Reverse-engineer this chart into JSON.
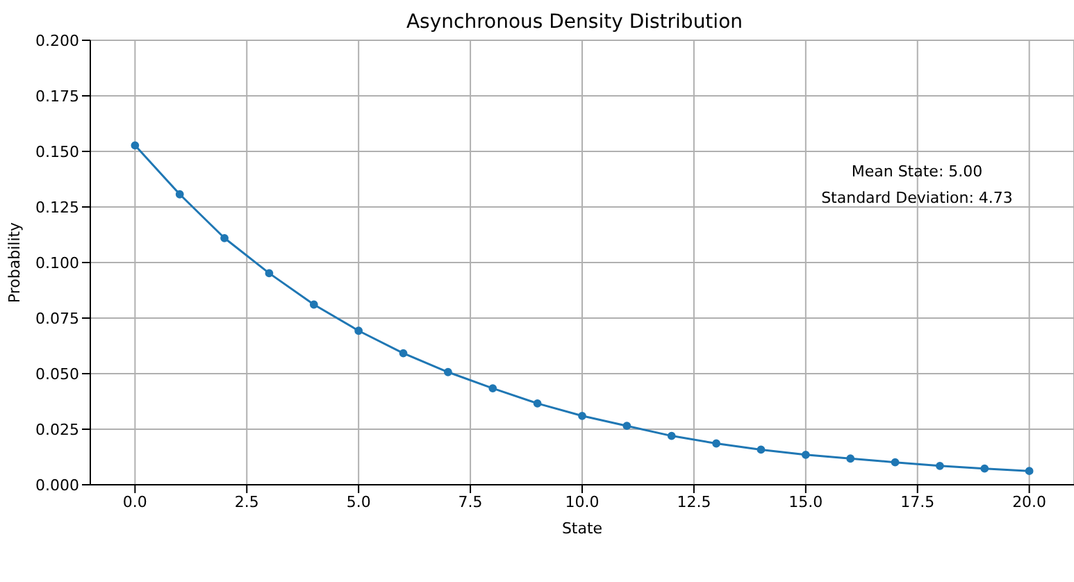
{
  "chart_data": {
    "type": "line",
    "title": "Asynchronous Density Distribution",
    "xlabel": "State",
    "ylabel": "Probability",
    "x": [
      0,
      1,
      2,
      3,
      4,
      5,
      6,
      7,
      8,
      9,
      10,
      11,
      12,
      13,
      14,
      15,
      16,
      17,
      18,
      19,
      20
    ],
    "series": [
      {
        "color": "#1f77b4",
        "values": [
          0.1527,
          0.1307,
          0.111,
          0.0952,
          0.0811,
          0.0693,
          0.0592,
          0.0507,
          0.0434,
          0.0366,
          0.031,
          0.0265,
          0.022,
          0.0186,
          0.0158,
          0.0135,
          0.0118,
          0.0101,
          0.0085,
          0.0073,
          0.0062
        ]
      }
    ],
    "xlim": [
      -1,
      21
    ],
    "xticks": [
      {
        "value": 0,
        "label": "0.0"
      },
      {
        "value": 2.5,
        "label": "2.5"
      },
      {
        "value": 5,
        "label": "5.0"
      },
      {
        "value": 7.5,
        "label": "7.5"
      },
      {
        "value": 10,
        "label": "10.0"
      },
      {
        "value": 12.5,
        "label": "12.5"
      },
      {
        "value": 15,
        "label": "15.0"
      },
      {
        "value": 17.5,
        "label": "17.5"
      },
      {
        "value": 20,
        "label": "20.0"
      }
    ],
    "ylim": [
      0,
      0.2
    ],
    "yticks": [
      {
        "value": 0,
        "label": "0.000"
      },
      {
        "value": 0.025,
        "label": "0.025"
      },
      {
        "value": 0.05,
        "label": "0.050"
      },
      {
        "value": 0.075,
        "label": "0.075"
      },
      {
        "value": 0.1,
        "label": "0.100"
      },
      {
        "value": 0.125,
        "label": "0.125"
      },
      {
        "value": 0.15,
        "label": "0.150"
      },
      {
        "value": 0.175,
        "label": "0.175"
      },
      {
        "value": 0.2,
        "label": "0.200"
      }
    ],
    "annotations": [
      "Mean State: 5.00",
      "Standard Deviation: 4.73"
    ],
    "grid": true,
    "marker": "circle",
    "line_style": "solid",
    "legend": false
  }
}
